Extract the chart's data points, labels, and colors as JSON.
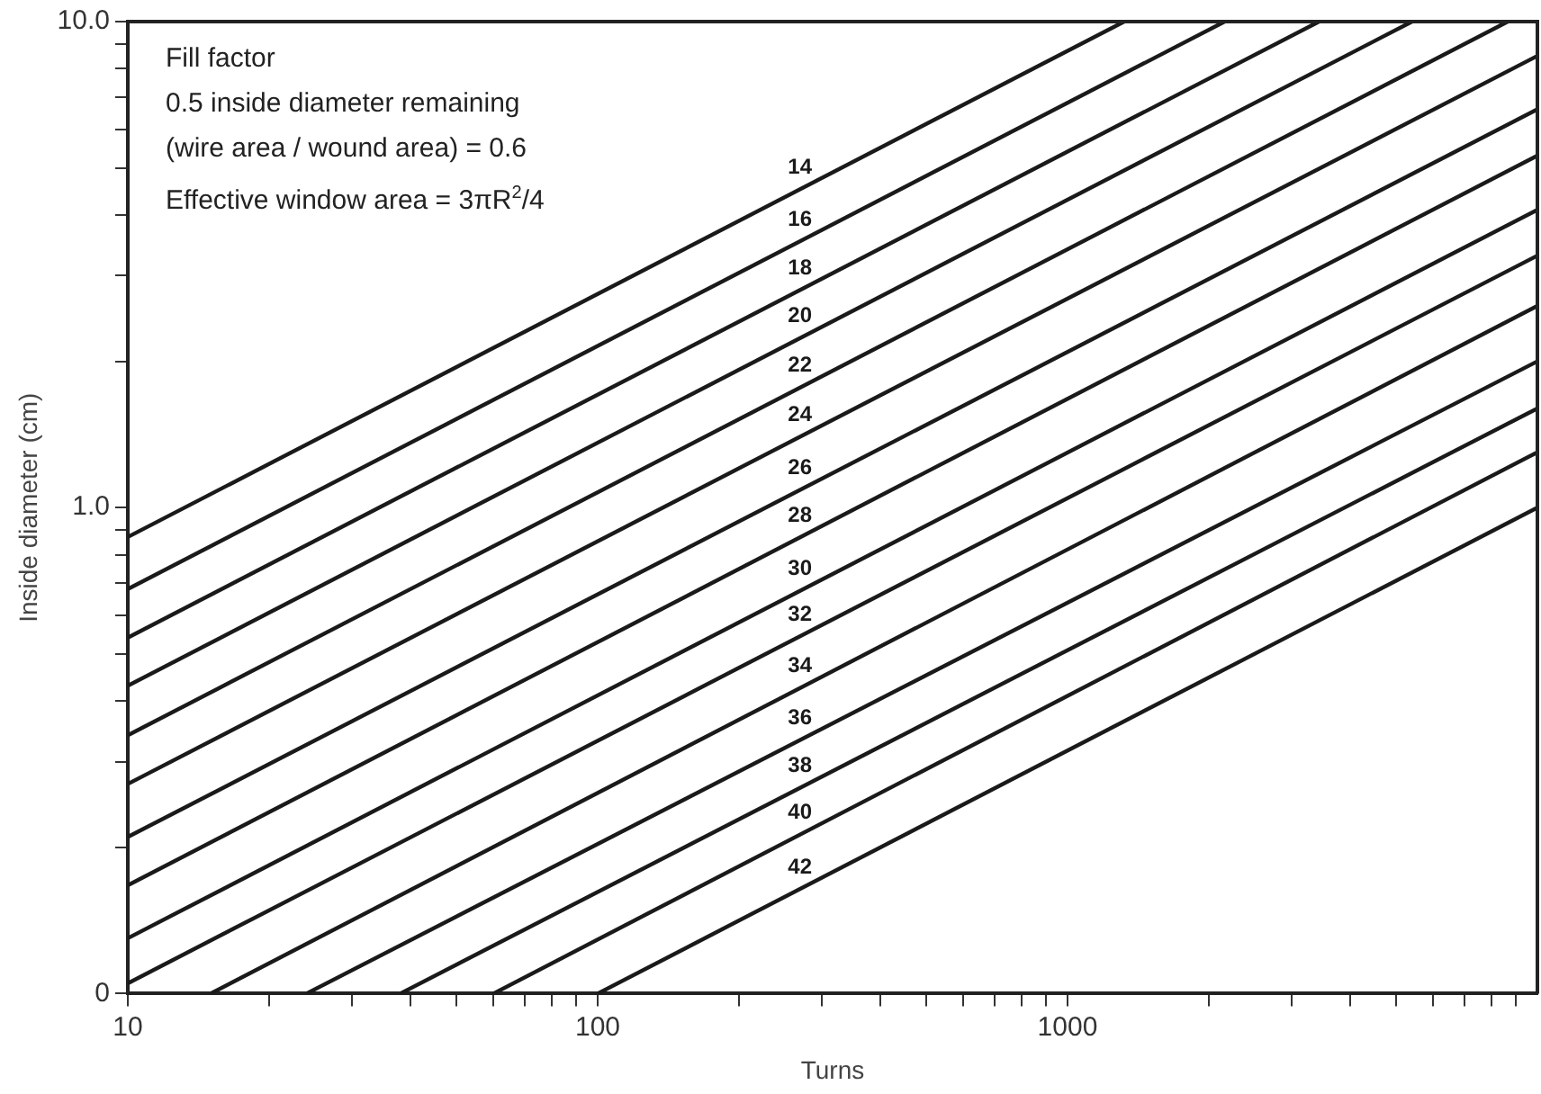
{
  "chart_data": {
    "type": "line",
    "xlabel": "Turns",
    "ylabel": "Inside diameter (cm)",
    "annotations": [
      "Fill factor",
      "0.5 inside diameter remaining",
      "(wire area / wound area) = 0.6",
      "Effective window area = 3πR$^{2}$/4"
    ],
    "log": "xy",
    "grid": false,
    "legend": false,
    "marker": "none",
    "line_style": "solid",
    "xlim": [
      10,
      10000
    ],
    "ylim": [
      0.1,
      10
    ],
    "xticks": [
      10,
      {
        "value": 20,
        "label": null
      },
      {
        "value": 30,
        "label": null
      },
      {
        "value": 40,
        "label": null
      },
      {
        "value": 50,
        "label": null
      },
      {
        "value": 60,
        "label": null
      },
      {
        "value": 70,
        "label": null
      },
      {
        "value": 80,
        "label": null
      },
      {
        "value": 90,
        "label": null
      },
      100,
      {
        "value": 200,
        "label": null
      },
      {
        "value": 300,
        "label": null
      },
      {
        "value": 400,
        "label": null
      },
      {
        "value": 500,
        "label": null
      },
      {
        "value": 600,
        "label": null
      },
      {
        "value": 700,
        "label": null
      },
      {
        "value": 800,
        "label": null
      },
      {
        "value": 900,
        "label": null
      },
      1000,
      {
        "value": 2000,
        "label": null
      },
      {
        "value": 3000,
        "label": null
      },
      {
        "value": 4000,
        "label": null
      },
      {
        "value": 5000,
        "label": null
      },
      {
        "value": 6000,
        "label": null
      },
      {
        "value": 7000,
        "label": null
      },
      {
        "value": 8000,
        "label": null
      },
      {
        "value": 9000,
        "label": null
      }
    ],
    "yticks": [
      {
        "value": 0.1,
        "label": "0"
      },
      {
        "value": 0.2,
        "label": null
      },
      {
        "value": 0.3,
        "label": null
      },
      {
        "value": 0.4,
        "label": null
      },
      {
        "value": 0.5,
        "label": null
      },
      {
        "value": 0.6,
        "label": null
      },
      {
        "value": 0.7,
        "label": null
      },
      {
        "value": 0.8,
        "label": null
      },
      {
        "value": 0.9,
        "label": null
      },
      {
        "value": 1,
        "label": "1.0"
      },
      {
        "value": 2,
        "label": null
      },
      {
        "value": 3,
        "label": null
      },
      {
        "value": 4,
        "label": null
      },
      {
        "value": 5,
        "label": null
      },
      {
        "value": 6,
        "label": null
      },
      {
        "value": 7,
        "label": null
      },
      {
        "value": 8,
        "label": null
      },
      {
        "value": 9,
        "label": null
      },
      {
        "value": 10,
        "label": "10.0"
      }
    ],
    "series": [
      {
        "name": "14",
        "color": "#1a1a1a",
        "x": [
          10,
          1320
        ],
        "values": [
          0.87,
          10
        ]
      },
      {
        "name": "16",
        "color": "#1a1a1a",
        "x": [
          10,
          2160
        ],
        "values": [
          0.68,
          10
        ]
      },
      {
        "name": "18",
        "color": "#1a1a1a",
        "x": [
          10,
          3430
        ],
        "values": [
          0.54,
          10
        ]
      },
      {
        "name": "20",
        "color": "#1a1a1a",
        "x": [
          10,
          5410
        ],
        "values": [
          0.43,
          10
        ]
      },
      {
        "name": "22",
        "color": "#1a1a1a",
        "x": [
          10,
          8650
        ],
        "values": [
          0.34,
          10
        ]
      },
      {
        "name": "24",
        "color": "#1a1a1a",
        "x": [
          10,
          10000
        ],
        "values": [
          0.27,
          8.5
        ]
      },
      {
        "name": "26",
        "color": "#1a1a1a",
        "x": [
          10,
          10000
        ],
        "values": [
          0.21,
          6.6
        ]
      },
      {
        "name": "28",
        "color": "#1a1a1a",
        "x": [
          10,
          10000
        ],
        "values": [
          0.167,
          5.3
        ]
      },
      {
        "name": "30",
        "color": "#1a1a1a",
        "x": [
          10,
          10000
        ],
        "values": [
          0.13,
          4.1
        ]
      },
      {
        "name": "32",
        "color": "#1a1a1a",
        "x": [
          10,
          10000
        ],
        "values": [
          0.105,
          3.3
        ]
      },
      {
        "name": "34",
        "color": "#1a1a1a",
        "x": [
          15,
          10000
        ],
        "values": [
          0.1,
          2.6
        ]
      },
      {
        "name": "36",
        "color": "#1a1a1a",
        "x": [
          24,
          10000
        ],
        "values": [
          0.1,
          2.0
        ]
      },
      {
        "name": "38",
        "color": "#1a1a1a",
        "x": [
          38,
          10000
        ],
        "values": [
          0.1,
          1.6
        ]
      },
      {
        "name": "40",
        "color": "#1a1a1a",
        "x": [
          60,
          10000
        ],
        "values": [
          0.1,
          1.3
        ]
      },
      {
        "name": "42",
        "color": "#1a1a1a",
        "x": [
          100,
          10000
        ],
        "values": [
          0.1,
          1.0
        ]
      }
    ]
  }
}
